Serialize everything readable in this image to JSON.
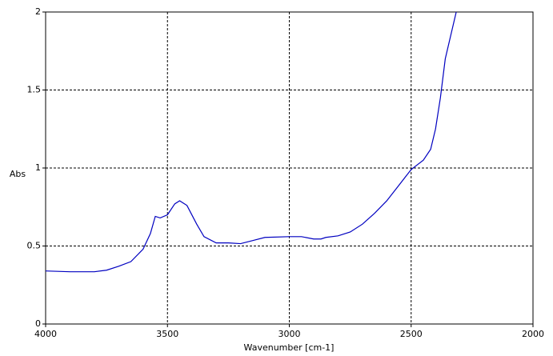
{
  "chart_data": {
    "type": "line",
    "xlabel": "Wavenumber [cm-1]",
    "ylabel": "Abs",
    "xlim": [
      4000,
      2000
    ],
    "ylim": [
      0,
      2
    ],
    "xticks": [
      4000,
      3500,
      3000,
      2500,
      2000
    ],
    "yticks": [
      0,
      0.5,
      1,
      1.5,
      2
    ],
    "grid": true,
    "series": [
      {
        "color": "#0000c0",
        "x": [
          4000,
          3900,
          3800,
          3750,
          3700,
          3650,
          3600,
          3570,
          3550,
          3530,
          3500,
          3470,
          3450,
          3420,
          3380,
          3350,
          3300,
          3250,
          3200,
          3150,
          3100,
          3000,
          2950,
          2900,
          2870,
          2850,
          2800,
          2750,
          2700,
          2650,
          2600,
          2550,
          2500,
          2450,
          2420,
          2400,
          2380,
          2360,
          2330,
          2315
        ],
        "values": [
          0.34,
          0.335,
          0.335,
          0.345,
          0.37,
          0.4,
          0.48,
          0.58,
          0.69,
          0.68,
          0.7,
          0.77,
          0.79,
          0.76,
          0.64,
          0.56,
          0.52,
          0.52,
          0.515,
          0.535,
          0.555,
          0.56,
          0.56,
          0.545,
          0.545,
          0.555,
          0.565,
          0.59,
          0.64,
          0.71,
          0.79,
          0.89,
          0.99,
          1.05,
          1.12,
          1.25,
          1.45,
          1.7,
          1.9,
          2.0
        ]
      }
    ]
  }
}
